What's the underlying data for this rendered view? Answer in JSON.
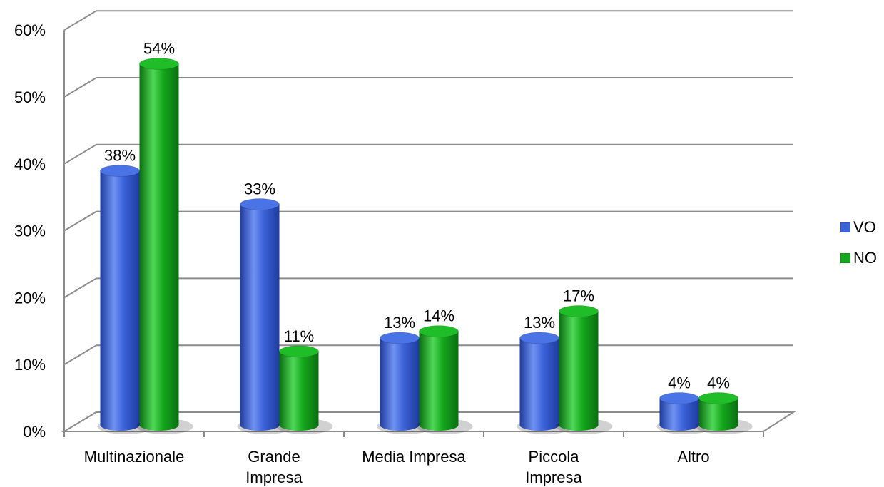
{
  "chart_data": {
    "type": "bar",
    "categories": [
      "Multinazionale",
      "Grande Impresa",
      "Media Impresa",
      "Piccola Impresa",
      "Altro"
    ],
    "category_lines": [
      [
        "Multinazionale"
      ],
      [
        "Grande",
        "Impresa"
      ],
      [
        "Media Impresa"
      ],
      [
        "Piccola",
        "Impresa"
      ],
      [
        "Altro"
      ]
    ],
    "series": [
      {
        "name": "VO",
        "values": [
          38,
          33,
          13,
          13,
          4
        ],
        "labels": [
          "38%",
          "33%",
          "13%",
          "13%",
          "4%"
        ],
        "color": "#3b62d9"
      },
      {
        "name": "NO",
        "values": [
          54,
          11,
          14,
          17,
          4
        ],
        "labels": [
          "54%",
          "11%",
          "14%",
          "17%",
          "4%"
        ],
        "color": "#14a81c"
      }
    ],
    "ylim": [
      0,
      60
    ],
    "ytick_values": [
      0,
      10,
      20,
      30,
      40,
      50,
      60
    ],
    "yticks": [
      "0%",
      "10%",
      "20%",
      "30%",
      "40%",
      "50%",
      "60%"
    ],
    "grid": true,
    "legend_position": "right",
    "three_d": true
  }
}
